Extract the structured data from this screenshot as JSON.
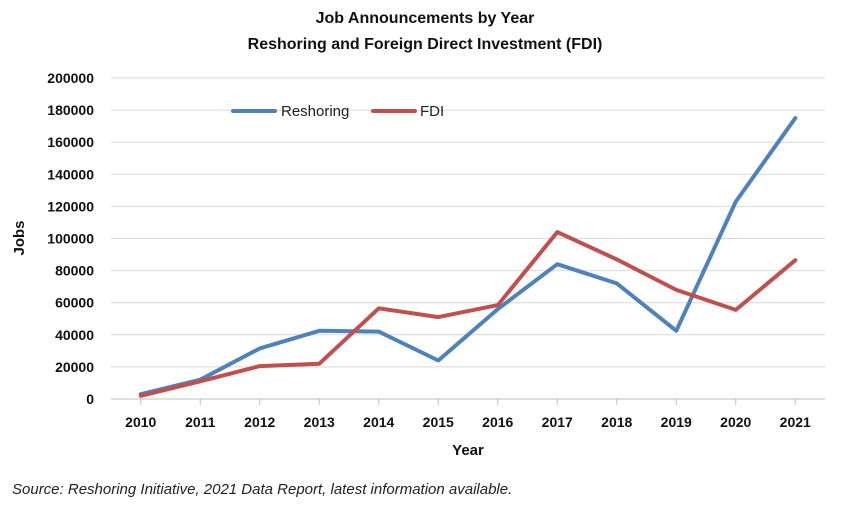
{
  "chart_data": {
    "type": "line",
    "title": "Job Announcements by Year",
    "subtitle": "Reshoring and Foreign Direct Investment (FDI)",
    "xlabel": "Year",
    "ylabel": "Jobs",
    "categories": [
      "2010",
      "2011",
      "2012",
      "2013",
      "2014",
      "2015",
      "2016",
      "2017",
      "2018",
      "2019",
      "2020",
      "2021"
    ],
    "yticks": [
      "0",
      "20000",
      "40000",
      "60000",
      "80000",
      "100000",
      "120000",
      "140000",
      "160000",
      "180000",
      "200000"
    ],
    "ylim": [
      0,
      200000
    ],
    "grid": true,
    "legend_position": "top-left",
    "series": [
      {
        "name": "Reshoring",
        "color": "#4f81bd",
        "values": [
          3000,
          12000,
          31500,
          42500,
          42000,
          24000,
          56000,
          84000,
          72000,
          42500,
          123000,
          175000
        ]
      },
      {
        "name": "FDI",
        "color": "#c0504d",
        "values": [
          2000,
          11000,
          20500,
          22000,
          56500,
          51000,
          58500,
          104000,
          87000,
          68000,
          55500,
          86500
        ]
      }
    ]
  },
  "source": "Source: Reshoring Initiative, 2021 Data Report, latest information available."
}
